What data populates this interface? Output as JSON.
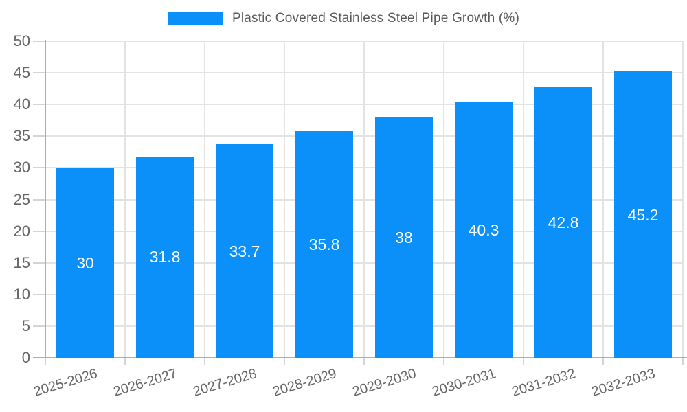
{
  "legend": {
    "label": "Plastic Covered Stainless Steel Pipe Growth (%)"
  },
  "chart_data": {
    "type": "bar",
    "title": "Plastic Covered Stainless Steel Pipe Growth (%)",
    "categories": [
      "2025-2026",
      "2026-2027",
      "2027-2028",
      "2028-2029",
      "2029-2030",
      "2030-2031",
      "2031-2032",
      "2032-2033"
    ],
    "values": [
      30,
      31.8,
      33.7,
      35.8,
      38,
      40.3,
      42.8,
      45.2
    ],
    "xlabel": "",
    "ylabel": "",
    "ylim": [
      0,
      50
    ],
    "ytick_step": 5,
    "grid": "on",
    "legend_position": "top-center",
    "colors": {
      "bar": "#0a90f8",
      "value_label": "#ffffff",
      "axis_text": "#666666",
      "grid_line": "#e3e3e3",
      "tick_line": "#d4d4d4",
      "axis_line": "#adadad",
      "background": "#ffffff"
    }
  }
}
